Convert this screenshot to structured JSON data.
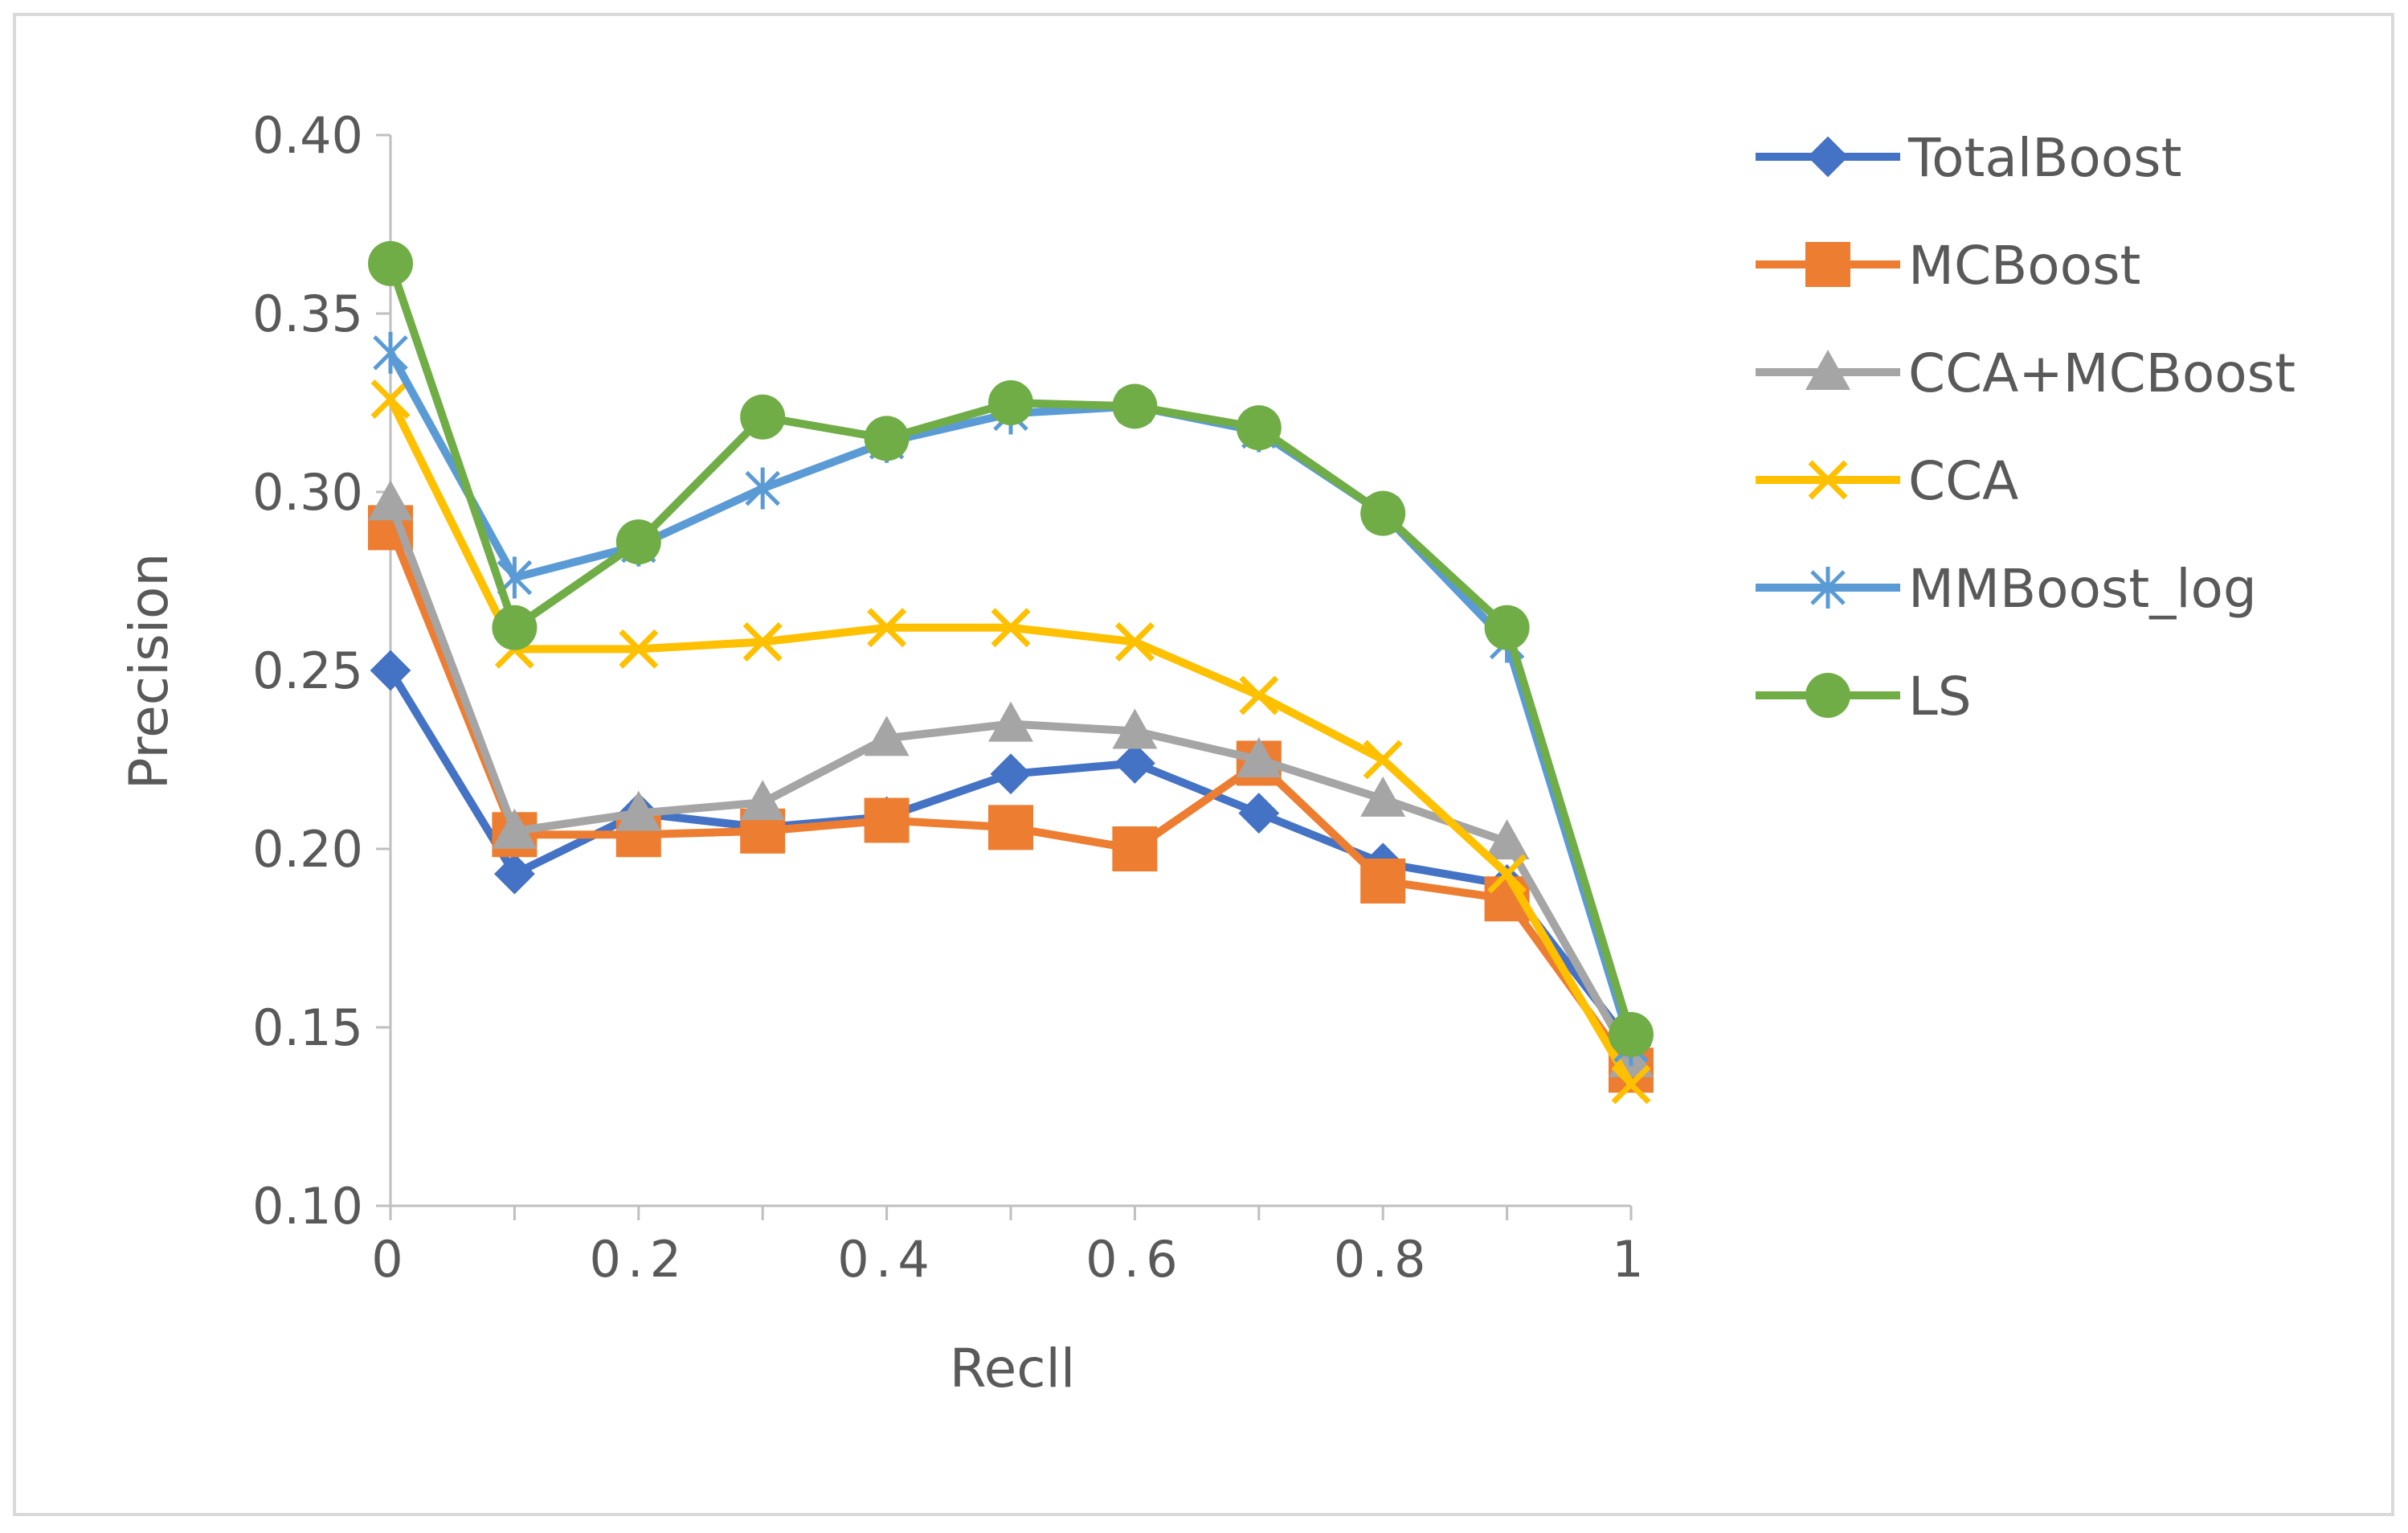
{
  "chart_data": {
    "type": "line",
    "title": "",
    "xlabel": "Recll",
    "ylabel": "Precision",
    "x": [
      0,
      0.1,
      0.2,
      0.3,
      0.4,
      0.5,
      0.6,
      0.7,
      0.8,
      0.9,
      1
    ],
    "xlim": [
      0,
      1
    ],
    "ylim": [
      0.1,
      0.4
    ],
    "x_ticks": [
      {
        "value": 0,
        "label": "0"
      },
      {
        "value": 0.2,
        "label": "0.2"
      },
      {
        "value": 0.4,
        "label": "0.4"
      },
      {
        "value": 0.6,
        "label": "0.6"
      },
      {
        "value": 0.8,
        "label": "0.8"
      },
      {
        "value": 1,
        "label": "1"
      }
    ],
    "y_ticks": [
      {
        "value": 0.1,
        "label": "0.10"
      },
      {
        "value": 0.15,
        "label": "0.15"
      },
      {
        "value": 0.2,
        "label": "0.20"
      },
      {
        "value": 0.25,
        "label": "0.25"
      },
      {
        "value": 0.3,
        "label": "0.30"
      },
      {
        "value": 0.35,
        "label": "0.35"
      },
      {
        "value": 0.4,
        "label": "0.40"
      }
    ],
    "grid": false,
    "legend_position": "right",
    "series": [
      {
        "name": "TotalBoost",
        "color": "#4472C4",
        "marker": "diamond",
        "values": [
          0.25,
          0.193,
          0.21,
          0.206,
          0.209,
          0.221,
          0.224,
          0.21,
          0.196,
          0.19,
          0.145
        ]
      },
      {
        "name": "MCBoost",
        "color": "#ED7D31",
        "marker": "square",
        "values": [
          0.29,
          0.204,
          0.204,
          0.205,
          0.208,
          0.206,
          0.2,
          0.224,
          0.191,
          0.186,
          0.138
        ]
      },
      {
        "name": "CCA+MCBoost",
        "color": "#A5A5A5",
        "marker": "triangle",
        "values": [
          0.297,
          0.205,
          0.21,
          0.213,
          0.231,
          0.235,
          0.233,
          0.225,
          0.214,
          0.202,
          0.141
        ]
      },
      {
        "name": "CCA",
        "color": "#FFC000",
        "marker": "x",
        "values": [
          0.326,
          0.256,
          0.256,
          0.258,
          0.262,
          0.262,
          0.258,
          0.243,
          0.225,
          0.193,
          0.134
        ]
      },
      {
        "name": "MMBoost_log",
        "color": "#5B9BD5",
        "marker": "star",
        "values": [
          0.339,
          0.276,
          0.285,
          0.301,
          0.314,
          0.322,
          0.324,
          0.317,
          0.294,
          0.258,
          0.145
        ]
      },
      {
        "name": "LS",
        "color": "#70AD47",
        "marker": "circle",
        "values": [
          0.364,
          0.262,
          0.286,
          0.321,
          0.315,
          0.325,
          0.324,
          0.318,
          0.294,
          0.262,
          0.148
        ]
      }
    ]
  }
}
